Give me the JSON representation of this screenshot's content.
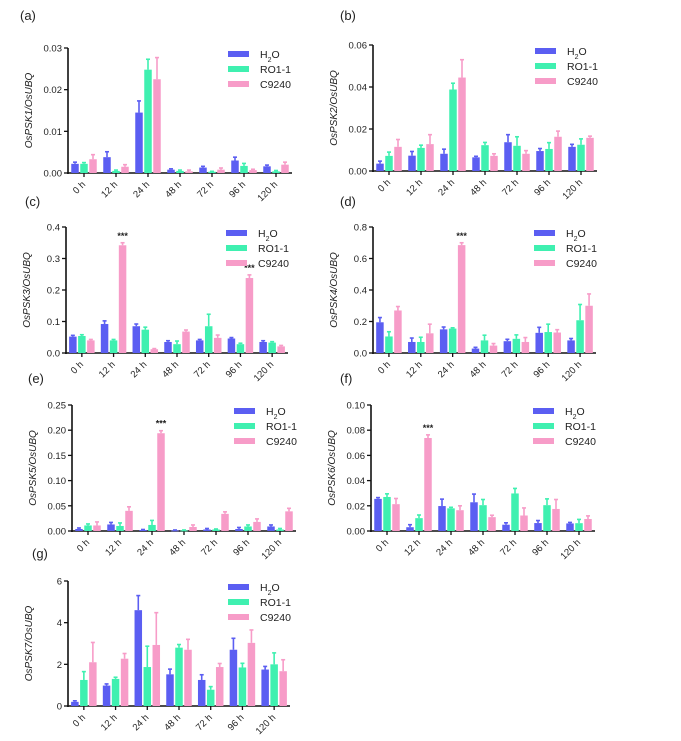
{
  "colors": {
    "H2O": "#5b5ef2",
    "RO1-1": "#3ff0b0",
    "C9240": "#f79cc8",
    "axis": "#111111"
  },
  "chart_data": [
    {
      "panel": "(a)",
      "type": "bar",
      "title": "",
      "xlabel": "",
      "ylabel": "OsPSK1/OsUBQ",
      "ylim": [
        0,
        0.03
      ],
      "yticks": [
        "0.00",
        "0.01",
        "0.02",
        "0.03"
      ],
      "categories": [
        "0 h",
        "12 h",
        "24 h",
        "48 h",
        "72 h",
        "96 h",
        "120 h"
      ],
      "legend": [
        "H2O",
        "RO1-1",
        "C9240"
      ],
      "legend_position": "top-right",
      "series": [
        {
          "name": "H2O",
          "values": [
            0.0022,
            0.0038,
            0.0145,
            0.0008,
            0.0013,
            0.003,
            0.0016
          ],
          "errors": [
            0.0004,
            0.0013,
            0.0028,
            0.0002,
            0.0003,
            0.0008,
            0.0003
          ]
        },
        {
          "name": "RO1-1",
          "values": [
            0.0022,
            0.0005,
            0.0248,
            0.0005,
            0.0003,
            0.0017,
            0.0004
          ],
          "errors": [
            0.0003,
            0.0002,
            0.0025,
            0.0002,
            0.0001,
            0.0006,
            0.0002
          ]
        },
        {
          "name": "C9240",
          "values": [
            0.0033,
            0.0015,
            0.0225,
            0.0004,
            0.0008,
            0.0007,
            0.002
          ],
          "errors": [
            0.0011,
            0.0005,
            0.0052,
            0.0003,
            0.0004,
            0.0002,
            0.0006
          ]
        }
      ],
      "annotations": []
    },
    {
      "panel": "(b)",
      "type": "bar",
      "title": "",
      "xlabel": "",
      "ylabel": "OsPSK2/OsUBQ",
      "ylim": [
        0,
        0.06
      ],
      "yticks": [
        "0.00",
        "0.02",
        "0.04",
        "0.06"
      ],
      "categories": [
        "0 h",
        "12 h",
        "24 h",
        "48 h",
        "72 h",
        "96 h",
        "120 h"
      ],
      "legend": [
        "H2O",
        "RO1-1",
        "C9240"
      ],
      "legend_position": "top-right",
      "series": [
        {
          "name": "H2O",
          "values": [
            0.0035,
            0.0073,
            0.0082,
            0.0065,
            0.0137,
            0.0095,
            0.0115
          ],
          "errors": [
            0.0012,
            0.002,
            0.0022,
            0.0005,
            0.0036,
            0.0012,
            0.0012
          ]
        },
        {
          "name": "RO1-1",
          "values": [
            0.0072,
            0.011,
            0.0388,
            0.0123,
            0.012,
            0.0105,
            0.0125
          ],
          "errors": [
            0.0018,
            0.0013,
            0.003,
            0.0013,
            0.0043,
            0.003,
            0.0028
          ]
        },
        {
          "name": "C9240",
          "values": [
            0.0115,
            0.0128,
            0.0445,
            0.0072,
            0.0082,
            0.0163,
            0.0158
          ],
          "errors": [
            0.0035,
            0.0045,
            0.0085,
            0.001,
            0.0015,
            0.0027,
            0.0008
          ]
        }
      ],
      "annotations": []
    },
    {
      "panel": "(c)",
      "type": "bar",
      "title": "",
      "xlabel": "",
      "ylabel": "OsPSK3/OsUBQ",
      "ylim": [
        0,
        0.4
      ],
      "yticks": [
        "0.0",
        "0.1",
        "0.2",
        "0.3",
        "0.4"
      ],
      "categories": [
        "0 h",
        "12 h",
        "24 h",
        "48 h",
        "72 h",
        "96 h",
        "120 h"
      ],
      "legend": [
        "H2O",
        "RO1-1",
        "C9240"
      ],
      "legend_position": "top-right",
      "series": [
        {
          "name": "H2O",
          "values": [
            0.052,
            0.092,
            0.085,
            0.035,
            0.04,
            0.046,
            0.035
          ],
          "errors": [
            0.004,
            0.01,
            0.007,
            0.004,
            0.003,
            0.003,
            0.004
          ]
        },
        {
          "name": "RO1-1",
          "values": [
            0.054,
            0.04,
            0.074,
            0.028,
            0.085,
            0.028,
            0.033
          ],
          "errors": [
            0.004,
            0.003,
            0.008,
            0.01,
            0.038,
            0.003,
            0.003
          ]
        },
        {
          "name": "C9240",
          "values": [
            0.04,
            0.342,
            0.012,
            0.068,
            0.048,
            0.238,
            0.021
          ],
          "errors": [
            0.003,
            0.008,
            0.002,
            0.005,
            0.009,
            0.01,
            0.003
          ]
        }
      ],
      "annotations": [
        {
          "text": "***",
          "category": "12 h",
          "series": "C9240"
        },
        {
          "text": "***",
          "category": "96 h",
          "series": "C9240"
        }
      ]
    },
    {
      "panel": "(d)",
      "type": "bar",
      "title": "",
      "xlabel": "",
      "ylabel": "OsPSK4/OsUBQ",
      "ylim": [
        0,
        0.8
      ],
      "yticks": [
        "0.0",
        "0.2",
        "0.4",
        "0.6",
        "0.8"
      ],
      "categories": [
        "0 h",
        "12 h",
        "24 h",
        "48 h",
        "72 h",
        "96 h",
        "120 h"
      ],
      "legend": [
        "H2O",
        "RO1-1",
        "C9240"
      ],
      "legend_position": "top-right",
      "series": [
        {
          "name": "H2O",
          "values": [
            0.195,
            0.07,
            0.15,
            0.028,
            0.075,
            0.128,
            0.08
          ],
          "errors": [
            0.03,
            0.025,
            0.015,
            0.008,
            0.012,
            0.035,
            0.012
          ]
        },
        {
          "name": "RO1-1",
          "values": [
            0.105,
            0.07,
            0.155,
            0.08,
            0.09,
            0.133,
            0.208
          ],
          "errors": [
            0.03,
            0.03,
            0.005,
            0.033,
            0.025,
            0.05,
            0.1
          ]
        },
        {
          "name": "C9240",
          "values": [
            0.27,
            0.125,
            0.685,
            0.047,
            0.07,
            0.13,
            0.3
          ],
          "errors": [
            0.025,
            0.058,
            0.015,
            0.013,
            0.028,
            0.018,
            0.075
          ]
        }
      ],
      "annotations": [
        {
          "text": "***",
          "category": "24 h",
          "series": "C9240"
        }
      ]
    },
    {
      "panel": "(e)",
      "type": "bar",
      "title": "",
      "xlabel": "",
      "ylabel": "OsPSK5/OsUBQ",
      "ylim": [
        0,
        0.25
      ],
      "yticks": [
        "0.00",
        "0.05",
        "0.10",
        "0.15",
        "0.20",
        "0.25"
      ],
      "categories": [
        "0 h",
        "12 h",
        "24 h",
        "48 h",
        "72 h",
        "96 h",
        "120 h"
      ],
      "legend": [
        "H2O",
        "RO1-1",
        "C9240"
      ],
      "legend_position": "top-right",
      "series": [
        {
          "name": "H2O",
          "values": [
            0.004,
            0.013,
            0.002,
            0.001,
            0.003,
            0.004,
            0.009
          ],
          "errors": [
            0.002,
            0.004,
            0.001,
            0.001,
            0.002,
            0.003,
            0.003
          ]
        },
        {
          "name": "RO1-1",
          "values": [
            0.011,
            0.01,
            0.012,
            0.001,
            0.003,
            0.009,
            0.003
          ],
          "errors": [
            0.003,
            0.006,
            0.009,
            0.001,
            0.001,
            0.003,
            0.002
          ]
        },
        {
          "name": "C9240",
          "values": [
            0.011,
            0.04,
            0.194,
            0.008,
            0.034,
            0.018,
            0.039
          ],
          "errors": [
            0.007,
            0.008,
            0.005,
            0.004,
            0.004,
            0.006,
            0.006
          ]
        }
      ],
      "annotations": [
        {
          "text": "***",
          "category": "24 h",
          "series": "C9240"
        }
      ]
    },
    {
      "panel": "(f)",
      "type": "bar",
      "title": "",
      "xlabel": "",
      "ylabel": "OsPSK6/OsUBQ",
      "ylim": [
        0,
        0.1
      ],
      "yticks": [
        "0.00",
        "0.02",
        "0.04",
        "0.06",
        "0.08",
        "0.10"
      ],
      "categories": [
        "0 h",
        "12 h",
        "24 h",
        "48 h",
        "72 h",
        "96 h",
        "120 h"
      ],
      "legend": [
        "H2O",
        "RO1-1",
        "C9240"
      ],
      "legend_position": "top-right",
      "series": [
        {
          "name": "H2O",
          "values": [
            0.0255,
            0.003,
            0.0198,
            0.0228,
            0.005,
            0.0063,
            0.006
          ],
          "errors": [
            0.001,
            0.002,
            0.0055,
            0.0065,
            0.0015,
            0.002,
            0.0008
          ]
        },
        {
          "name": "RO1-1",
          "values": [
            0.027,
            0.0102,
            0.018,
            0.0205,
            0.0298,
            0.0205,
            0.0062
          ],
          "errors": [
            0.0025,
            0.0025,
            0.0008,
            0.0045,
            0.004,
            0.005,
            0.003
          ]
        },
        {
          "name": "C9240",
          "values": [
            0.0213,
            0.0738,
            0.0165,
            0.011,
            0.0123,
            0.0175,
            0.0095
          ],
          "errors": [
            0.0045,
            0.0025,
            0.0035,
            0.0015,
            0.006,
            0.0075,
            0.0025
          ]
        }
      ],
      "annotations": [
        {
          "text": "***",
          "category": "12 h",
          "series": "C9240"
        }
      ]
    },
    {
      "panel": "(g)",
      "type": "bar",
      "title": "",
      "xlabel": "",
      "ylabel": "OsPSK7/OsUBQ",
      "ylim": [
        0,
        6
      ],
      "yticks": [
        "0",
        "2",
        "4",
        "6"
      ],
      "categories": [
        "0 h",
        "12 h",
        "24 h",
        "48 h",
        "72 h",
        "96 h",
        "120 h"
      ],
      "legend": [
        "H2O",
        "RO1-1",
        "C9240"
      ],
      "legend_position": "top-right",
      "series": [
        {
          "name": "H2O",
          "values": [
            0.2,
            0.98,
            4.6,
            1.52,
            1.25,
            2.7,
            1.75
          ],
          "errors": [
            0.05,
            0.08,
            0.7,
            0.25,
            0.25,
            0.55,
            0.15
          ]
        },
        {
          "name": "RO1-1",
          "values": [
            1.25,
            1.3,
            1.87,
            2.8,
            0.78,
            1.85,
            2.0
          ],
          "errors": [
            0.4,
            0.08,
            1.0,
            0.15,
            0.15,
            0.2,
            0.55
          ]
        },
        {
          "name": "C9240",
          "values": [
            2.1,
            2.27,
            2.93,
            2.7,
            1.87,
            3.03,
            1.67
          ],
          "errors": [
            0.95,
            0.25,
            1.55,
            0.5,
            0.17,
            0.62,
            0.55
          ]
        }
      ],
      "annotations": []
    }
  ]
}
